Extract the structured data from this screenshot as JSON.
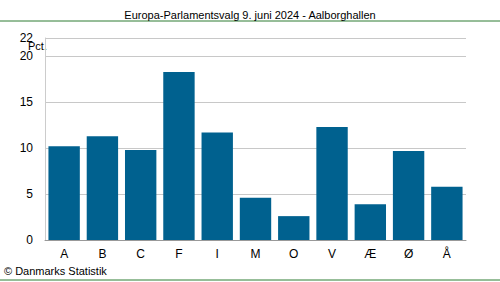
{
  "chart_data": {
    "type": "bar",
    "title": "Europa-Parlamentsvalg 9. juni 2024 - Aalborghallen",
    "y_label": "Pct.",
    "source": "© Danmarks Statistik",
    "categories": [
      "A",
      "B",
      "C",
      "F",
      "I",
      "M",
      "O",
      "V",
      "Æ",
      "Ø",
      "Å"
    ],
    "values": [
      10.2,
      11.3,
      9.8,
      18.3,
      11.7,
      4.6,
      2.6,
      12.3,
      3.9,
      9.7,
      5.8
    ],
    "color": "#00618f",
    "ylim": [
      0,
      22
    ],
    "yticks": [
      0,
      5,
      10,
      15,
      20
    ],
    "grid": true
  }
}
